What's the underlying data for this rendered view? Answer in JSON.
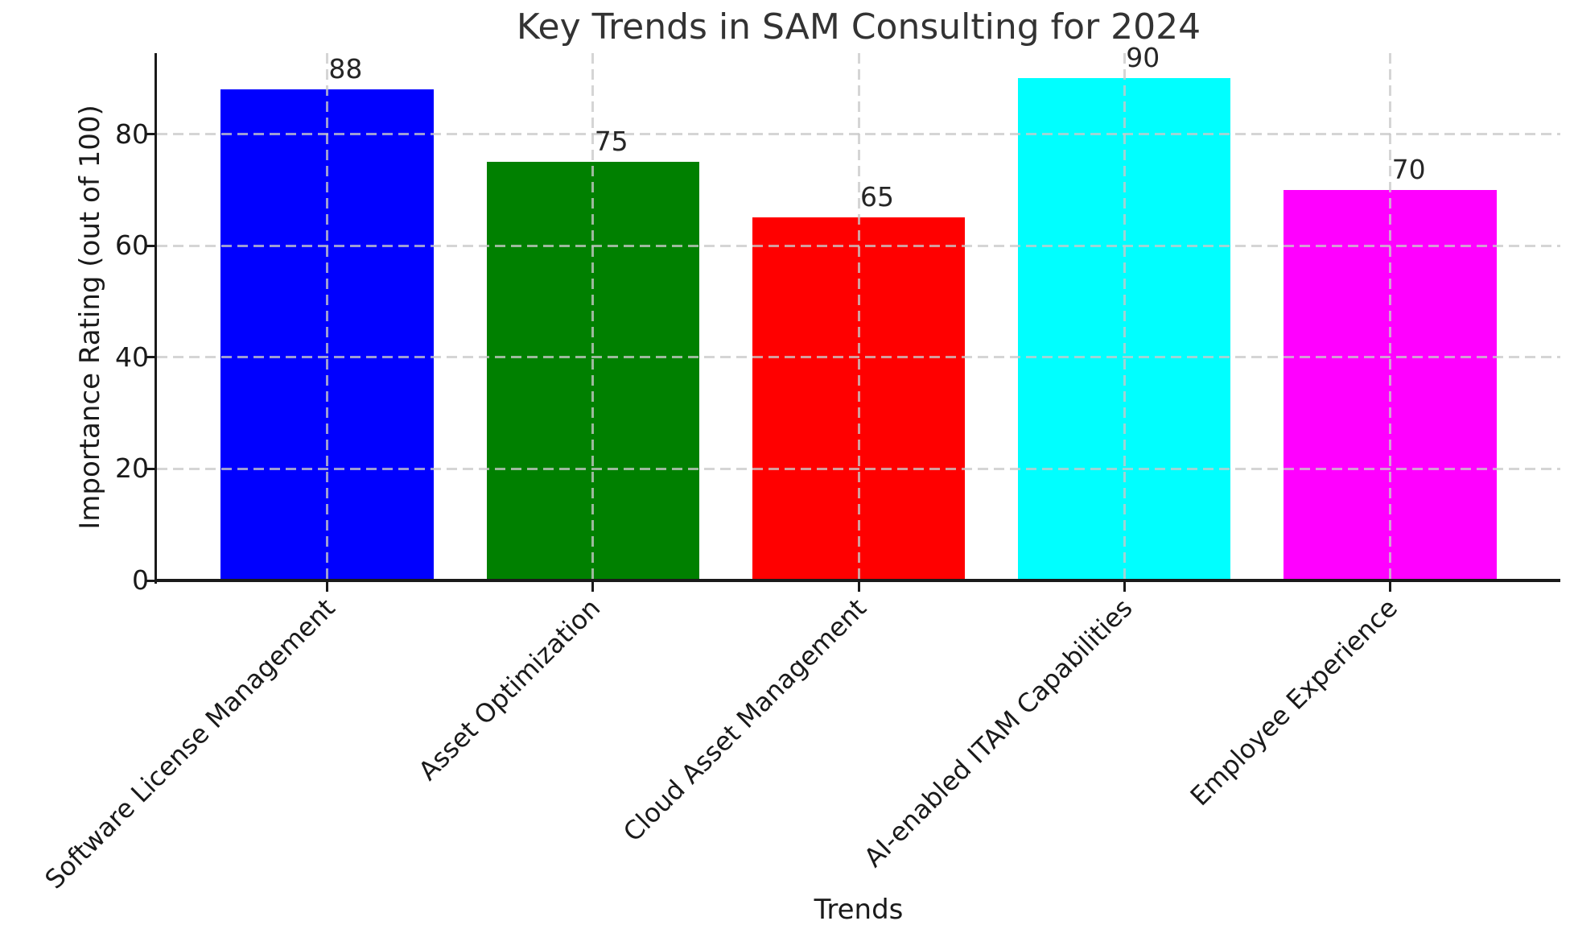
{
  "chart_data": {
    "type": "bar",
    "title": "Key Trends in SAM Consulting for 2024",
    "xlabel": "Trends",
    "ylabel": "Importance Rating (out of 100)",
    "categories": [
      "Software License Management",
      "Asset Optimization",
      "Cloud Asset Management",
      "AI-enabled ITAM Capabilities",
      "Employee Experience"
    ],
    "values": [
      88,
      75,
      65,
      90,
      70
    ],
    "bar_colors": [
      "#0000ff",
      "#008000",
      "#ff0000",
      "#00ffff",
      "#ff00ff"
    ],
    "yticks": [
      0,
      20,
      40,
      60,
      80
    ],
    "ylim": [
      0,
      94.5
    ],
    "bar_width_fraction": 0.8,
    "grid": {
      "linestyle": "dashed",
      "color": "#c9c9c9",
      "drawn_over_bars": true,
      "axes": "both"
    },
    "legend": "none",
    "text_color": "#262626",
    "spine_color": "#1a1a1a",
    "background": "#ffffff"
  }
}
